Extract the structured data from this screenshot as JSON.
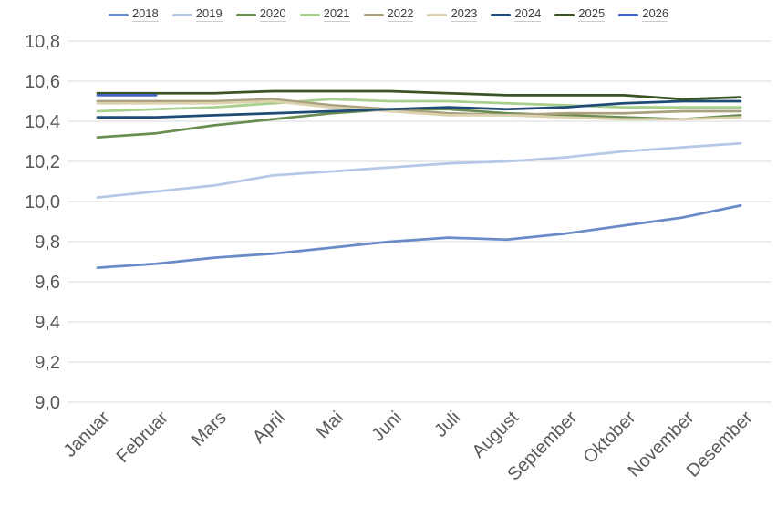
{
  "chart_data": {
    "type": "line",
    "title": "",
    "xlabel": "",
    "ylabel": "",
    "categories": [
      "Januar",
      "Februar",
      "Mars",
      "April",
      "Mai",
      "Juni",
      "Juli",
      "August",
      "September",
      "Oktober",
      "November",
      "Desember"
    ],
    "ylim": [
      9.0,
      10.8
    ],
    "ytick_step": 0.2,
    "ytick_labels": [
      "9,0",
      "9,2",
      "9,4",
      "9,6",
      "9,8",
      "10,0",
      "10,2",
      "10,4",
      "10,6",
      "10,8"
    ],
    "grid": true,
    "legend_position": "top",
    "decimal_separator": ",",
    "series": [
      {
        "name": "2018",
        "color": "#698CC8",
        "values": [
          9.67,
          9.69,
          9.72,
          9.74,
          9.77,
          9.8,
          9.82,
          9.81,
          9.84,
          9.88,
          9.92,
          9.98
        ]
      },
      {
        "name": "2019",
        "color": "#B7C7E8",
        "values": [
          10.02,
          10.05,
          10.08,
          10.13,
          10.15,
          10.17,
          10.19,
          10.2,
          10.22,
          10.25,
          10.27,
          10.29
        ]
      },
      {
        "name": "2020",
        "color": "#6A8D51",
        "values": [
          10.32,
          10.34,
          10.38,
          10.41,
          10.44,
          10.46,
          10.46,
          10.44,
          10.43,
          10.42,
          10.41,
          10.43
        ]
      },
      {
        "name": "2021",
        "color": "#A8CF8D",
        "values": [
          10.45,
          10.46,
          10.47,
          10.49,
          10.51,
          10.5,
          10.5,
          10.49,
          10.48,
          10.47,
          10.47,
          10.47
        ]
      },
      {
        "name": "2022",
        "color": "#AAA07E",
        "values": [
          10.5,
          10.5,
          10.5,
          10.51,
          10.48,
          10.46,
          10.44,
          10.43,
          10.44,
          10.44,
          10.45,
          10.45
        ]
      },
      {
        "name": "2023",
        "color": "#DBD1AD",
        "values": [
          10.49,
          10.49,
          10.49,
          10.5,
          10.47,
          10.45,
          10.43,
          10.43,
          10.42,
          10.41,
          10.41,
          10.42
        ]
      },
      {
        "name": "2024",
        "color": "#1F4B77",
        "values": [
          10.42,
          10.42,
          10.43,
          10.44,
          10.45,
          10.46,
          10.47,
          10.46,
          10.47,
          10.49,
          10.5,
          10.5
        ]
      },
      {
        "name": "2025",
        "color": "#3A5323",
        "values": [
          10.54,
          10.54,
          10.54,
          10.55,
          10.55,
          10.55,
          10.54,
          10.53,
          10.53,
          10.53,
          10.51,
          10.52
        ]
      },
      {
        "name": "2026",
        "color": "#4165C0",
        "values": [
          10.53,
          10.53,
          null,
          null,
          null,
          null,
          null,
          null,
          null,
          null,
          null,
          null
        ]
      }
    ]
  },
  "colors": {
    "background": "#FFFFFF",
    "gridline": "#D9D9D9",
    "axis_text": "#595959",
    "legend_text": "#404040"
  }
}
